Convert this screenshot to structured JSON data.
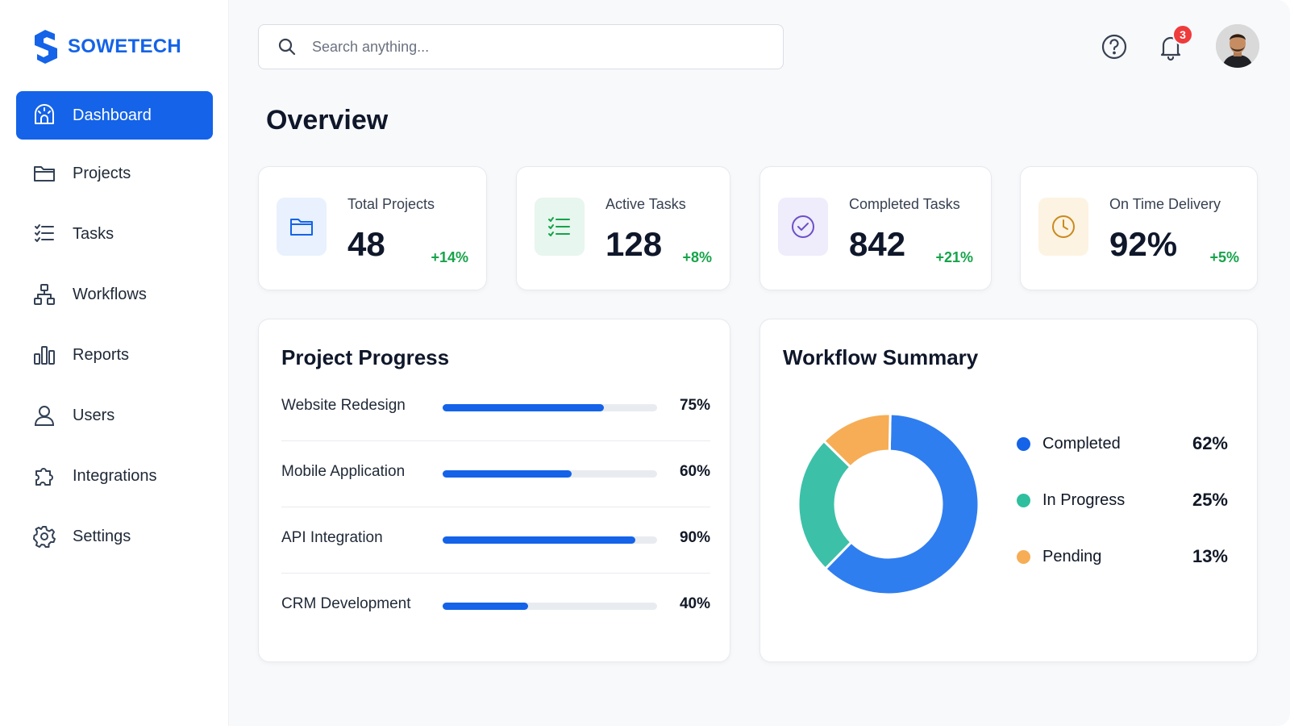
{
  "brand": {
    "name": "SOWETECH"
  },
  "colors": {
    "accent": "#1463e8",
    "positive": "#16a34a",
    "completed": "#2f7ef0",
    "in_progress": "#3cc1a8",
    "pending": "#f6ad55",
    "badge": "#ef3b3b"
  },
  "sidebar": {
    "items": [
      {
        "label": "Dashboard",
        "icon": "dashboard-icon",
        "active": true
      },
      {
        "label": "Projects",
        "icon": "folder-icon",
        "active": false
      },
      {
        "label": "Tasks",
        "icon": "checklist-icon",
        "active": false
      },
      {
        "label": "Workflows",
        "icon": "workflow-icon",
        "active": false
      },
      {
        "label": "Reports",
        "icon": "bar-chart-icon",
        "active": false
      },
      {
        "label": "Users",
        "icon": "user-icon",
        "active": false
      },
      {
        "label": "Integrations",
        "icon": "puzzle-icon",
        "active": false
      },
      {
        "label": "Settings",
        "icon": "gear-icon",
        "active": false
      }
    ]
  },
  "header": {
    "search_placeholder": "Search anything...",
    "search_value": "",
    "notification_count": "3"
  },
  "main": {
    "title": "Overview",
    "stats": [
      {
        "label": "Total Projects",
        "value": "48",
        "delta": "+14%",
        "icon": "folder-icon"
      },
      {
        "label": "Active Tasks",
        "value": "128",
        "delta": "+8%",
        "icon": "checklist-icon"
      },
      {
        "label": "Completed Tasks",
        "value": "842",
        "delta": "+21%",
        "icon": "check-circle-icon"
      },
      {
        "label": "On Time Delivery",
        "value": "92%",
        "delta": "+5%",
        "icon": "clock-icon"
      }
    ],
    "project_progress": {
      "title": "Project Progress",
      "items": [
        {
          "name": "Website Redesign",
          "percent_label": "75%",
          "progress": 0.75
        },
        {
          "name": "Mobile Application",
          "percent_label": "60%",
          "progress": 0.6
        },
        {
          "name": "API Integration",
          "percent_label": "90%",
          "progress": 0.9
        },
        {
          "name": "CRM Development",
          "percent_label": "40%",
          "progress": 0.4
        }
      ]
    },
    "workflow_summary": {
      "title": "Workflow Summary",
      "legend": [
        {
          "name": "Completed",
          "value_label": "62%"
        },
        {
          "name": "In Progress",
          "value_label": "25%"
        },
        {
          "name": "Pending",
          "value_label": "13%"
        }
      ]
    }
  },
  "chart_data": {
    "type": "pie",
    "categories": [
      "Completed",
      "In Progress",
      "Pending"
    ],
    "values": [
      62,
      25,
      13
    ],
    "title": "Workflow Summary"
  }
}
